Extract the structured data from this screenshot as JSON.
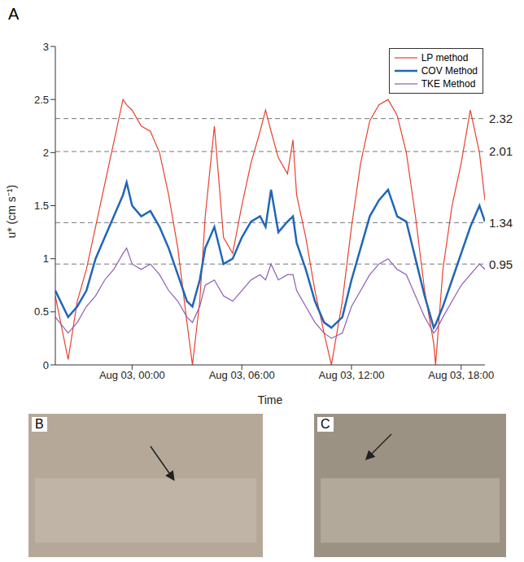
{
  "chart_data": {
    "type": "line",
    "panel": "A",
    "xlabel": "Time",
    "ylabel": "u* (cm s⁻¹)",
    "x": [
      -4.2,
      -3.5,
      -3,
      -2.5,
      -2,
      -1.5,
      -1,
      -0.5,
      -0.3,
      0,
      0.5,
      1,
      1.5,
      2,
      2.5,
      3,
      3.3,
      3.7,
      4,
      4.5,
      5,
      5.5,
      6,
      6.5,
      7,
      7.3,
      7.6,
      8,
      8.5,
      8.8,
      9,
      9.5,
      10,
      10.5,
      10.9,
      11.5,
      12,
      12.5,
      13,
      13.5,
      14,
      14.5,
      15,
      15.5,
      16,
      16.5,
      16.6,
      17,
      17.5,
      18,
      18.5,
      19,
      19.3
    ],
    "xlim": [
      -4.2,
      19.3
    ],
    "xticks": [
      {
        "value": 0,
        "label": "Aug 03, 00:00"
      },
      {
        "value": 6,
        "label": "Aug 03, 06:00"
      },
      {
        "value": 12,
        "label": "Aug 03, 12:00"
      },
      {
        "value": 18,
        "label": "Aug 03, 18:00"
      }
    ],
    "ylim": [
      0,
      3
    ],
    "yticks": [
      0,
      0.5,
      1,
      1.5,
      2,
      2.5,
      3
    ],
    "legend": "upper right",
    "reference_lines": [
      2.32,
      2.01,
      1.34,
      0.95
    ],
    "series": [
      {
        "name": "LP method",
        "color": "#e8412c",
        "values": [
          0.65,
          0.05,
          0.6,
          0.9,
          1.3,
          1.7,
          2.1,
          2.5,
          2.45,
          2.4,
          2.25,
          2.2,
          2.0,
          1.6,
          1.1,
          0.4,
          0.0,
          0.6,
          1.4,
          2.25,
          1.2,
          1.05,
          1.5,
          1.9,
          2.2,
          2.4,
          2.2,
          1.95,
          1.8,
          2.12,
          1.6,
          1.2,
          0.7,
          0.3,
          0.0,
          0.6,
          1.3,
          1.9,
          2.3,
          2.45,
          2.5,
          2.35,
          2.0,
          1.4,
          0.7,
          0.2,
          0.0,
          0.9,
          1.5,
          1.9,
          2.4,
          2.0,
          1.55
        ]
      },
      {
        "name": "COV Method",
        "color": "#2166b8",
        "values": [
          0.7,
          0.45,
          0.55,
          0.7,
          1.0,
          1.2,
          1.4,
          1.6,
          1.72,
          1.5,
          1.4,
          1.45,
          1.3,
          1.1,
          0.85,
          0.6,
          0.55,
          0.8,
          1.1,
          1.3,
          0.95,
          1.0,
          1.2,
          1.35,
          1.4,
          1.3,
          1.65,
          1.25,
          1.35,
          1.4,
          1.15,
          0.9,
          0.6,
          0.4,
          0.35,
          0.45,
          0.8,
          1.1,
          1.4,
          1.55,
          1.65,
          1.4,
          1.35,
          1.0,
          0.65,
          0.35,
          0.38,
          0.55,
          0.8,
          1.05,
          1.3,
          1.5,
          1.35
        ]
      },
      {
        "name": "TKE Method",
        "color": "#8e5bb5",
        "values": [
          0.45,
          0.3,
          0.4,
          0.55,
          0.65,
          0.8,
          0.9,
          1.05,
          1.1,
          0.95,
          0.9,
          0.95,
          0.85,
          0.7,
          0.6,
          0.45,
          0.4,
          0.55,
          0.75,
          0.8,
          0.65,
          0.6,
          0.7,
          0.8,
          0.85,
          0.8,
          0.95,
          0.8,
          0.85,
          0.85,
          0.7,
          0.55,
          0.4,
          0.3,
          0.25,
          0.3,
          0.55,
          0.7,
          0.85,
          0.95,
          1.0,
          0.9,
          0.85,
          0.65,
          0.45,
          0.3,
          0.32,
          0.45,
          0.6,
          0.75,
          0.85,
          0.95,
          0.9
        ]
      }
    ]
  },
  "photos": [
    {
      "panel": "B"
    },
    {
      "panel": "C"
    }
  ]
}
